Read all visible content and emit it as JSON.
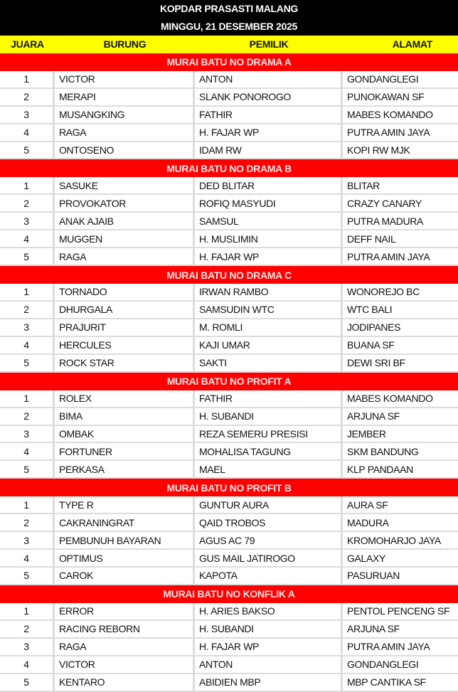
{
  "title": "KOPDAR PRASASTI MALANG",
  "date": "MINGGU, 21 DESEMBER 2025",
  "colors": {
    "title_bg": "#000000",
    "header_bg": "#ffff00",
    "section_bg": "#ff0000"
  },
  "headers": {
    "juara": "JUARA",
    "burung": "BURUNG",
    "pemilik": "PEMILIK",
    "alamat": "ALAMAT"
  },
  "sections": [
    {
      "name": "MURAI BATU NO DRAMA A",
      "rows": [
        [
          "1",
          "VICTOR",
          "ANTON",
          "GONDANGLEGI"
        ],
        [
          "2",
          "MERAPI",
          "SLANK PONOROGO",
          "PUNOKAWAN SF"
        ],
        [
          "3",
          "MUSANGKING",
          "FATHIR",
          "MABES KOMANDO"
        ],
        [
          "4",
          "RAGA",
          "H. FAJAR WP",
          "PUTRA AMIN JAYA"
        ],
        [
          "5",
          "ONTOSENO",
          "IDAM RW",
          "KOPI RW MJK"
        ]
      ]
    },
    {
      "name": "MURAI BATU NO DRAMA B",
      "rows": [
        [
          "1",
          "SASUKE",
          "DED BLITAR",
          "BLITAR"
        ],
        [
          "2",
          "PROVOKATOR",
          "ROFIQ MASYUDI",
          "CRAZY CANARY"
        ],
        [
          "3",
          "ANAK AJAIB",
          "SAMSUL",
          "PUTRA MADURA"
        ],
        [
          "4",
          "MUGGEN",
          "H. MUSLIMIN",
          "DEFF NAIL"
        ],
        [
          "5",
          "RAGA",
          "H. FAJAR WP",
          "PUTRA AMIN JAYA"
        ]
      ]
    },
    {
      "name": "MURAI BATU NO DRAMA C",
      "rows": [
        [
          "1",
          "TORNADO",
          "IRWAN RAMBO",
          "WONOREJO BC"
        ],
        [
          "2",
          "DHURGALA",
          "SAMSUDIN WTC",
          "WTC BALI"
        ],
        [
          "3",
          "PRAJURIT",
          "M. ROMLI",
          "JODIPANES"
        ],
        [
          "4",
          "HERCULES",
          "KAJI UMAR",
          "BUANA SF"
        ],
        [
          "5",
          "ROCK STAR",
          "SAKTI",
          "DEWI SRI BF"
        ]
      ]
    },
    {
      "name": "MURAI BATU NO PROFIT A",
      "rows": [
        [
          "1",
          "ROLEX",
          "FATHIR",
          "MABES KOMANDO"
        ],
        [
          "2",
          "BIMA",
          "H. SUBANDI",
          "ARJUNA SF"
        ],
        [
          "3",
          "OMBAK",
          "REZA SEMERU PRESISI",
          "JEMBER"
        ],
        [
          "4",
          "FORTUNER",
          "MOHALISA TAGUNG",
          "SKM BANDUNG"
        ],
        [
          "5",
          "PERKASA",
          "MAEL",
          "KLP PANDAAN"
        ]
      ]
    },
    {
      "name": "MURAI BATU NO PROFIT B",
      "rows": [
        [
          "1",
          "TYPE R",
          "GUNTUR AURA",
          "AURA SF"
        ],
        [
          "2",
          "CAKRANINGRAT",
          "QAID TROBOS",
          "MADURA"
        ],
        [
          "3",
          "PEMBUNUH BAYARAN",
          "AGUS AC 79",
          "KROMOHARJO JAYA"
        ],
        [
          "4",
          "OPTIMUS",
          "GUS MAIL JATIROGO",
          "GALAXY"
        ],
        [
          "5",
          "CAROK",
          "KAPOTA",
          "PASURUAN"
        ]
      ]
    },
    {
      "name": "MURAI BATU NO KONFLIK A",
      "rows": [
        [
          "1",
          "ERROR",
          "H. ARIES BAKSO",
          "PENTOL PENCENG SF"
        ],
        [
          "2",
          "RACING REBORN",
          "H. SUBANDI",
          "ARJUNA SF"
        ],
        [
          "3",
          "RAGA",
          "H. FAJAR WP",
          "PUTRA AMIN JAYA"
        ],
        [
          "4",
          "VICTOR",
          "ANTON",
          "GONDANGLEGI"
        ],
        [
          "5",
          "KENTARO",
          "ABIDIEN MBP",
          "MBP CANTIKA SF"
        ]
      ]
    }
  ]
}
